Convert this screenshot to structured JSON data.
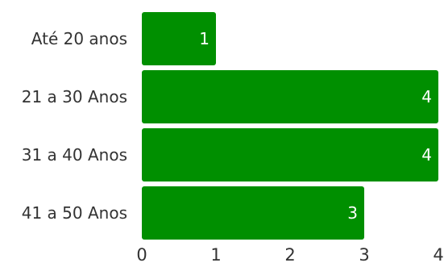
{
  "chart_data": {
    "type": "bar",
    "orientation": "horizontal",
    "categories": [
      "Até 20 anos",
      "21 a 30 Anos",
      "31 a 40 Anos",
      "41 a 50 Anos"
    ],
    "values": [
      1,
      4,
      4,
      3
    ],
    "data_labels": [
      "1",
      "4",
      "4",
      "3"
    ],
    "x_ticks": [
      "0",
      "1",
      "2",
      "3",
      "4"
    ],
    "xlim": [
      0,
      4
    ],
    "title": "",
    "xlabel": "",
    "ylabel": "",
    "grid": false,
    "legend": "none",
    "colors": {
      "bar": "#008f00",
      "data_label": "#ffffff",
      "text": "#333333"
    }
  }
}
